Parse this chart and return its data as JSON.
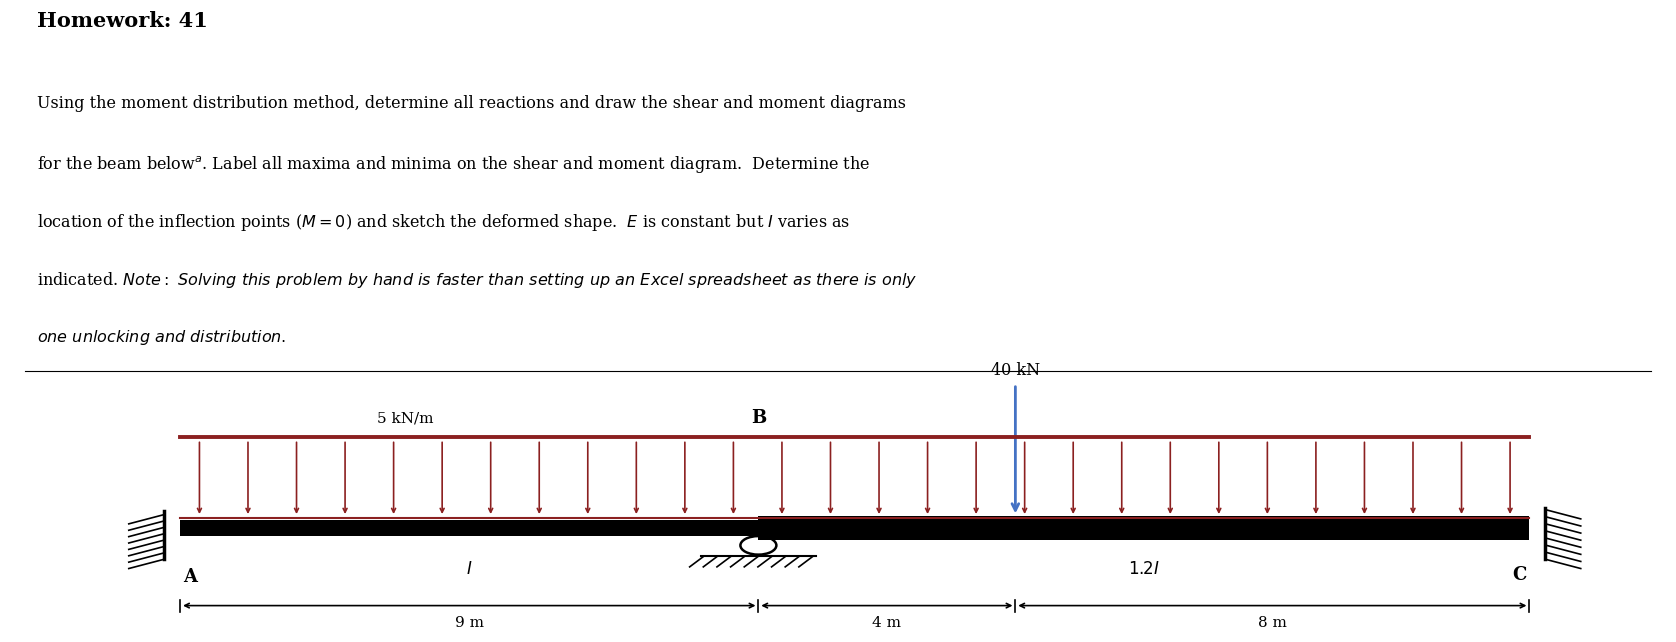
{
  "title": "Homework: 41",
  "bg_color": "#ffffff",
  "beam_color": "#000000",
  "load_color": "#8B2020",
  "point_load_color": "#4472C4",
  "span1": 9,
  "span2": 4,
  "span3": 8,
  "total_span": 21,
  "label_A": "A",
  "label_B": "B",
  "label_C": "C",
  "label_I1": "I",
  "label_I2": "1.2I",
  "dist_load": "5 kN/m",
  "point_load": "40 kN",
  "dim1": "9 m",
  "dim2": "4 m",
  "dim3": "8 m",
  "text_lines_normal": [
    "Using the moment distribution method, determine all reactions and draw the shear and moment diagrams",
    "for the beam below$^{a}$. Label all maxima and minima on the shear and moment diagram.  Determine the",
    "location of the inflection points ($M = 0$) and sketch the deformed shape.  $E$ is constant but $I$ varies as"
  ],
  "text_lines_italic": [
    "indicated. $\\mathit{Note: Solving\\ this\\ problem\\ by\\ hand\\ is\\ faster\\ than\\ setting\\ up\\ an\\ Excel\\ spreadsheet\\ as\\ there\\ is\\ only}$",
    "$\\mathit{one\\ unlocking\\ and\\ distribution.}$"
  ],
  "text_line_mixed": "indicated. "
}
